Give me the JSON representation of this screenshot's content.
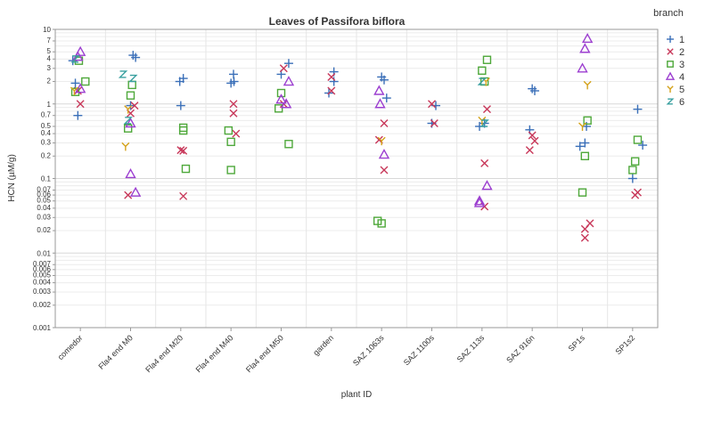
{
  "chart_data": {
    "type": "scatter",
    "title": "Leaves of Passifora biflora",
    "xlabel": "plant ID",
    "ylabel": "HCN (µM/g)",
    "yscale": "log",
    "ylim": [
      0.001,
      10
    ],
    "yticks": [
      {
        "v": 0.001,
        "label": "0.001"
      },
      {
        "v": 0.002,
        "label": "0.002"
      },
      {
        "v": 0.003,
        "label": "0.003"
      },
      {
        "v": 0.004,
        "label": "0.004"
      },
      {
        "v": 0.005,
        "label": "0.005"
      },
      {
        "v": 0.006,
        "label": "0.006"
      },
      {
        "v": 0.007,
        "label": "0.007"
      },
      {
        "v": 0.01,
        "label": "0.01"
      },
      {
        "v": 0.02,
        "label": "0.02"
      },
      {
        "v": 0.03,
        "label": "0.03"
      },
      {
        "v": 0.04,
        "label": "0.04"
      },
      {
        "v": 0.05,
        "label": "0.05"
      },
      {
        "v": 0.06,
        "label": "0.06"
      },
      {
        "v": 0.07,
        "label": "0.07"
      },
      {
        "v": 0.1,
        "label": "0.1"
      },
      {
        "v": 0.2,
        "label": "0.2"
      },
      {
        "v": 0.3,
        "label": "0.3"
      },
      {
        "v": 0.4,
        "label": "0.4"
      },
      {
        "v": 0.5,
        "label": "0.5"
      },
      {
        "v": 0.7,
        "label": "0.7"
      },
      {
        "v": 1,
        "label": "1"
      },
      {
        "v": 2,
        "label": "2"
      },
      {
        "v": 3,
        "label": "3"
      },
      {
        "v": 4,
        "label": "4"
      },
      {
        "v": 5,
        "label": "5"
      },
      {
        "v": 7,
        "label": "7"
      },
      {
        "v": 10,
        "label": "10"
      }
    ],
    "categories": [
      "comedor",
      "Fla4 end M0",
      "Fla4 end M20",
      "Fla4 end M40",
      "Fla4 end M50",
      "garden",
      "SAZ 1063s",
      "SAZ 1100s",
      "SAZ 113s",
      "SAZ 916n",
      "SP1s",
      "SP1s2"
    ],
    "legend_title": "branch",
    "legend_position": "right",
    "grid": true,
    "series": [
      {
        "name": "1",
        "marker": "plus",
        "color": "#3a6fb8",
        "points": [
          {
            "x": "comedor",
            "y": 1.9,
            "jitter": -0.1
          },
          {
            "x": "comedor",
            "y": 0.7,
            "jitter": -0.05
          },
          {
            "x": "comedor",
            "y": 3.8,
            "jitter": -0.15
          },
          {
            "x": "Fla4 end M0",
            "y": 4.5,
            "jitter": 0.05
          },
          {
            "x": "Fla4 end M0",
            "y": 4.2,
            "jitter": 0.1
          },
          {
            "x": "Fla4 end M0",
            "y": 0.95,
            "jitter": 0.0
          },
          {
            "x": "Fla4 end M20",
            "y": 2.2,
            "jitter": 0.05
          },
          {
            "x": "Fla4 end M20",
            "y": 2.0,
            "jitter": -0.02
          },
          {
            "x": "Fla4 end M20",
            "y": 0.95,
            "jitter": 0.0
          },
          {
            "x": "Fla4 end M40",
            "y": 2.5,
            "jitter": 0.05
          },
          {
            "x": "Fla4 end M40",
            "y": 1.9,
            "jitter": 0.0
          },
          {
            "x": "Fla4 end M40",
            "y": 2.0,
            "jitter": 0.06
          },
          {
            "x": "Fla4 end M50",
            "y": 3.5,
            "jitter": 0.15
          },
          {
            "x": "Fla4 end M50",
            "y": 2.5,
            "jitter": 0.0
          },
          {
            "x": "garden",
            "y": 2.7,
            "jitter": 0.05
          },
          {
            "x": "garden",
            "y": 2.0,
            "jitter": 0.05
          },
          {
            "x": "garden",
            "y": 1.4,
            "jitter": -0.05
          },
          {
            "x": "SAZ 1063s",
            "y": 2.3,
            "jitter": 0.0
          },
          {
            "x": "SAZ 1063s",
            "y": 2.1,
            "jitter": 0.05
          },
          {
            "x": "SAZ 1063s",
            "y": 1.2,
            "jitter": 0.1
          },
          {
            "x": "SAZ 1100s",
            "y": 0.95,
            "jitter": 0.08
          },
          {
            "x": "SAZ 1100s",
            "y": 0.55,
            "jitter": 0.0
          },
          {
            "x": "SAZ 113s",
            "y": 0.55,
            "jitter": 0.05
          },
          {
            "x": "SAZ 113s",
            "y": 0.5,
            "jitter": -0.05
          },
          {
            "x": "SAZ 916n",
            "y": 1.6,
            "jitter": 0.0
          },
          {
            "x": "SAZ 916n",
            "y": 1.5,
            "jitter": 0.05
          },
          {
            "x": "SAZ 916n",
            "y": 0.45,
            "jitter": -0.05
          },
          {
            "x": "SP1s",
            "y": 0.5,
            "jitter": 0.08
          },
          {
            "x": "SP1s",
            "y": 0.3,
            "jitter": 0.05
          },
          {
            "x": "SP1s",
            "y": 0.27,
            "jitter": -0.05
          },
          {
            "x": "SP1s2",
            "y": 0.85,
            "jitter": 0.1
          },
          {
            "x": "SP1s2",
            "y": 0.28,
            "jitter": 0.2
          },
          {
            "x": "SP1s2",
            "y": 0.1,
            "jitter": 0.0
          }
        ]
      },
      {
        "name": "2",
        "marker": "x",
        "color": "#c8385a",
        "points": [
          {
            "x": "comedor",
            "y": 1.5,
            "jitter": -0.05
          },
          {
            "x": "comedor",
            "y": 1.0,
            "jitter": 0.0
          },
          {
            "x": "Fla4 end M0",
            "y": 0.95,
            "jitter": 0.08
          },
          {
            "x": "Fla4 end M0",
            "y": 0.75,
            "jitter": 0.0
          },
          {
            "x": "Fla4 end M0",
            "y": 0.06,
            "jitter": -0.05
          },
          {
            "x": "Fla4 end M20",
            "y": 0.24,
            "jitter": 0.0
          },
          {
            "x": "Fla4 end M20",
            "y": 0.235,
            "jitter": 0.05
          },
          {
            "x": "Fla4 end M20",
            "y": 0.058,
            "jitter": 0.05
          },
          {
            "x": "Fla4 end M40",
            "y": 1.0,
            "jitter": 0.05
          },
          {
            "x": "Fla4 end M40",
            "y": 0.75,
            "jitter": 0.05
          },
          {
            "x": "Fla4 end M40",
            "y": 0.4,
            "jitter": 0.1
          },
          {
            "x": "Fla4 end M50",
            "y": 3.0,
            "jitter": 0.05
          },
          {
            "x": "Fla4 end M50",
            "y": 1.0,
            "jitter": 0.05
          },
          {
            "x": "garden",
            "y": 2.3,
            "jitter": 0.0
          },
          {
            "x": "garden",
            "y": 1.5,
            "jitter": 0.0
          },
          {
            "x": "SAZ 1063s",
            "y": 0.55,
            "jitter": 0.05
          },
          {
            "x": "SAZ 1063s",
            "y": 0.33,
            "jitter": -0.05
          },
          {
            "x": "SAZ 1063s",
            "y": 0.13,
            "jitter": 0.05
          },
          {
            "x": "SAZ 1100s",
            "y": 1.0,
            "jitter": 0.0
          },
          {
            "x": "SAZ 1100s",
            "y": 0.55,
            "jitter": 0.05
          },
          {
            "x": "SAZ 113s",
            "y": 0.85,
            "jitter": 0.1
          },
          {
            "x": "SAZ 113s",
            "y": 0.16,
            "jitter": 0.05
          },
          {
            "x": "SAZ 113s",
            "y": 0.042,
            "jitter": 0.05
          },
          {
            "x": "SAZ 916n",
            "y": 0.38,
            "jitter": 0.0
          },
          {
            "x": "SAZ 916n",
            "y": 0.32,
            "jitter": 0.05
          },
          {
            "x": "SAZ 916n",
            "y": 0.24,
            "jitter": -0.05
          },
          {
            "x": "SP1s",
            "y": 0.025,
            "jitter": 0.15
          },
          {
            "x": "SP1s",
            "y": 0.021,
            "jitter": 0.05
          },
          {
            "x": "SP1s",
            "y": 0.016,
            "jitter": 0.05
          },
          {
            "x": "SP1s2",
            "y": 0.065,
            "jitter": 0.1
          },
          {
            "x": "SP1s2",
            "y": 0.06,
            "jitter": 0.05
          }
        ]
      },
      {
        "name": "3",
        "marker": "square",
        "color": "#4ea83a",
        "points": [
          {
            "x": "comedor",
            "y": 2.0,
            "jitter": 0.1
          },
          {
            "x": "comedor",
            "y": 1.45,
            "jitter": -0.1
          },
          {
            "x": "comedor",
            "y": 3.8,
            "jitter": -0.03
          },
          {
            "x": "Fla4 end M0",
            "y": 1.8,
            "jitter": 0.03
          },
          {
            "x": "Fla4 end M0",
            "y": 1.3,
            "jitter": 0.0
          },
          {
            "x": "Fla4 end M0",
            "y": 0.47,
            "jitter": -0.05
          },
          {
            "x": "Fla4 end M20",
            "y": 0.48,
            "jitter": 0.05
          },
          {
            "x": "Fla4 end M20",
            "y": 0.44,
            "jitter": 0.05
          },
          {
            "x": "Fla4 end M20",
            "y": 0.135,
            "jitter": 0.1
          },
          {
            "x": "Fla4 end M40",
            "y": 0.44,
            "jitter": -0.05
          },
          {
            "x": "Fla4 end M40",
            "y": 0.31,
            "jitter": 0.0
          },
          {
            "x": "Fla4 end M40",
            "y": 0.13,
            "jitter": 0.0
          },
          {
            "x": "Fla4 end M50",
            "y": 1.4,
            "jitter": 0.0
          },
          {
            "x": "Fla4 end M50",
            "y": 0.87,
            "jitter": -0.05
          },
          {
            "x": "Fla4 end M50",
            "y": 0.29,
            "jitter": 0.15
          },
          {
            "x": "SAZ 1063s",
            "y": 0.027,
            "jitter": -0.08
          },
          {
            "x": "SAZ 1063s",
            "y": 0.025,
            "jitter": 0.0
          },
          {
            "x": "SAZ 113s",
            "y": 3.9,
            "jitter": 0.1
          },
          {
            "x": "SAZ 113s",
            "y": 2.8,
            "jitter": 0.0
          },
          {
            "x": "SAZ 113s",
            "y": 2.0,
            "jitter": 0.05
          },
          {
            "x": "SP1s",
            "y": 0.6,
            "jitter": 0.1
          },
          {
            "x": "SP1s",
            "y": 0.2,
            "jitter": 0.05
          },
          {
            "x": "SP1s",
            "y": 0.065,
            "jitter": 0.0
          },
          {
            "x": "SP1s2",
            "y": 0.33,
            "jitter": 0.1
          },
          {
            "x": "SP1s2",
            "y": 0.17,
            "jitter": 0.05
          },
          {
            "x": "SP1s2",
            "y": 0.13,
            "jitter": 0.0
          }
        ]
      },
      {
        "name": "4",
        "marker": "triangle",
        "color": "#9c3fd0",
        "points": [
          {
            "x": "comedor",
            "y": 5.0,
            "jitter": 0.0
          },
          {
            "x": "comedor",
            "y": 4.3,
            "jitter": -0.05
          },
          {
            "x": "comedor",
            "y": 1.6,
            "jitter": 0.0
          },
          {
            "x": "Fla4 end M0",
            "y": 0.55,
            "jitter": 0.0
          },
          {
            "x": "Fla4 end M0",
            "y": 0.115,
            "jitter": 0.0
          },
          {
            "x": "Fla4 end M0",
            "y": 0.065,
            "jitter": 0.1
          },
          {
            "x": "Fla4 end M50",
            "y": 2.0,
            "jitter": 0.15
          },
          {
            "x": "Fla4 end M50",
            "y": 1.15,
            "jitter": 0.0
          },
          {
            "x": "Fla4 end M50",
            "y": 1.0,
            "jitter": 0.1
          },
          {
            "x": "SAZ 1063s",
            "y": 1.5,
            "jitter": -0.05
          },
          {
            "x": "SAZ 1063s",
            "y": 1.0,
            "jitter": -0.03
          },
          {
            "x": "SAZ 1063s",
            "y": 0.21,
            "jitter": 0.05
          },
          {
            "x": "SAZ 113s",
            "y": 0.08,
            "jitter": 0.1
          },
          {
            "x": "SAZ 113s",
            "y": 0.05,
            "jitter": -0.05
          },
          {
            "x": "SAZ 113s",
            "y": 0.047,
            "jitter": -0.05
          },
          {
            "x": "SP1s",
            "y": 7.5,
            "jitter": 0.1
          },
          {
            "x": "SP1s",
            "y": 5.5,
            "jitter": 0.05
          },
          {
            "x": "SP1s",
            "y": 3.0,
            "jitter": 0.0
          }
        ]
      },
      {
        "name": "5",
        "marker": "y",
        "color": "#d4a21a",
        "points": [
          {
            "x": "comedor",
            "y": 1.5,
            "jitter": -0.12
          },
          {
            "x": "Fla4 end M0",
            "y": 0.85,
            "jitter": -0.05
          },
          {
            "x": "Fla4 end M0",
            "y": 0.27,
            "jitter": -0.1
          },
          {
            "x": "SAZ 1063s",
            "y": 0.32,
            "jitter": 0.0
          },
          {
            "x": "SAZ 113s",
            "y": 2.0,
            "jitter": 0.08
          },
          {
            "x": "SAZ 113s",
            "y": 0.6,
            "jitter": 0.0
          },
          {
            "x": "SP1s",
            "y": 1.8,
            "jitter": 0.1
          },
          {
            "x": "SP1s",
            "y": 0.5,
            "jitter": 0.0
          }
        ]
      },
      {
        "name": "6",
        "marker": "z",
        "color": "#3aa0a0",
        "points": [
          {
            "x": "comedor",
            "y": 4.0,
            "jitter": -0.1
          },
          {
            "x": "Fla4 end M0",
            "y": 2.5,
            "jitter": -0.15
          },
          {
            "x": "Fla4 end M0",
            "y": 2.2,
            "jitter": 0.05
          },
          {
            "x": "Fla4 end M0",
            "y": 0.6,
            "jitter": -0.05
          },
          {
            "x": "SAZ 113s",
            "y": 2.0,
            "jitter": 0.0
          },
          {
            "x": "SAZ 113s",
            "y": 0.55,
            "jitter": 0.05
          }
        ]
      }
    ]
  }
}
